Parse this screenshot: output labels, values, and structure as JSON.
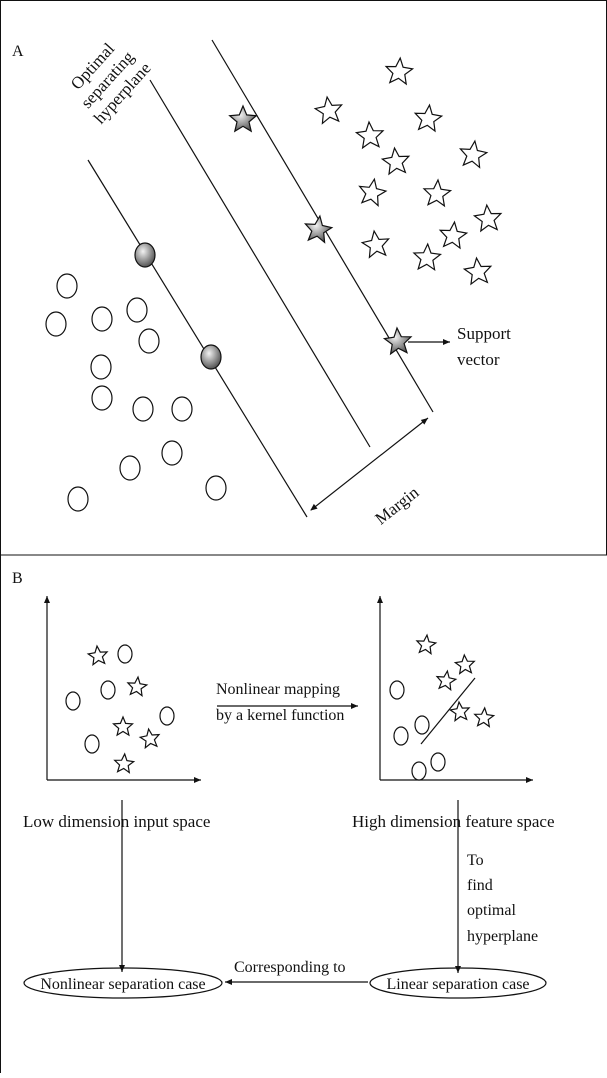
{
  "panel_a": {
    "letter": "A",
    "hyperplane_label": [
      "Optimal",
      "separating",
      "hyperplane"
    ],
    "support_vector_label": [
      "Support",
      "vector"
    ],
    "margin_label": "Margin"
  },
  "panel_b": {
    "letter": "B",
    "mapping_label": [
      "Nonlinear mapping",
      "by a kernel function"
    ],
    "low_space_label": "Low dimension input space",
    "high_space_label": "High dimension feature space",
    "find_label": [
      "To",
      "find",
      "optimal",
      "hyperplane"
    ],
    "nonlinear_case_label": "Nonlinear separation case",
    "linear_case_label": "Linear separation case",
    "corresponding_label": "Corresponding to"
  },
  "colors": {
    "line": "#111111",
    "support_fill_light": "#f2f2f2",
    "support_fill_dark": "#555555"
  }
}
